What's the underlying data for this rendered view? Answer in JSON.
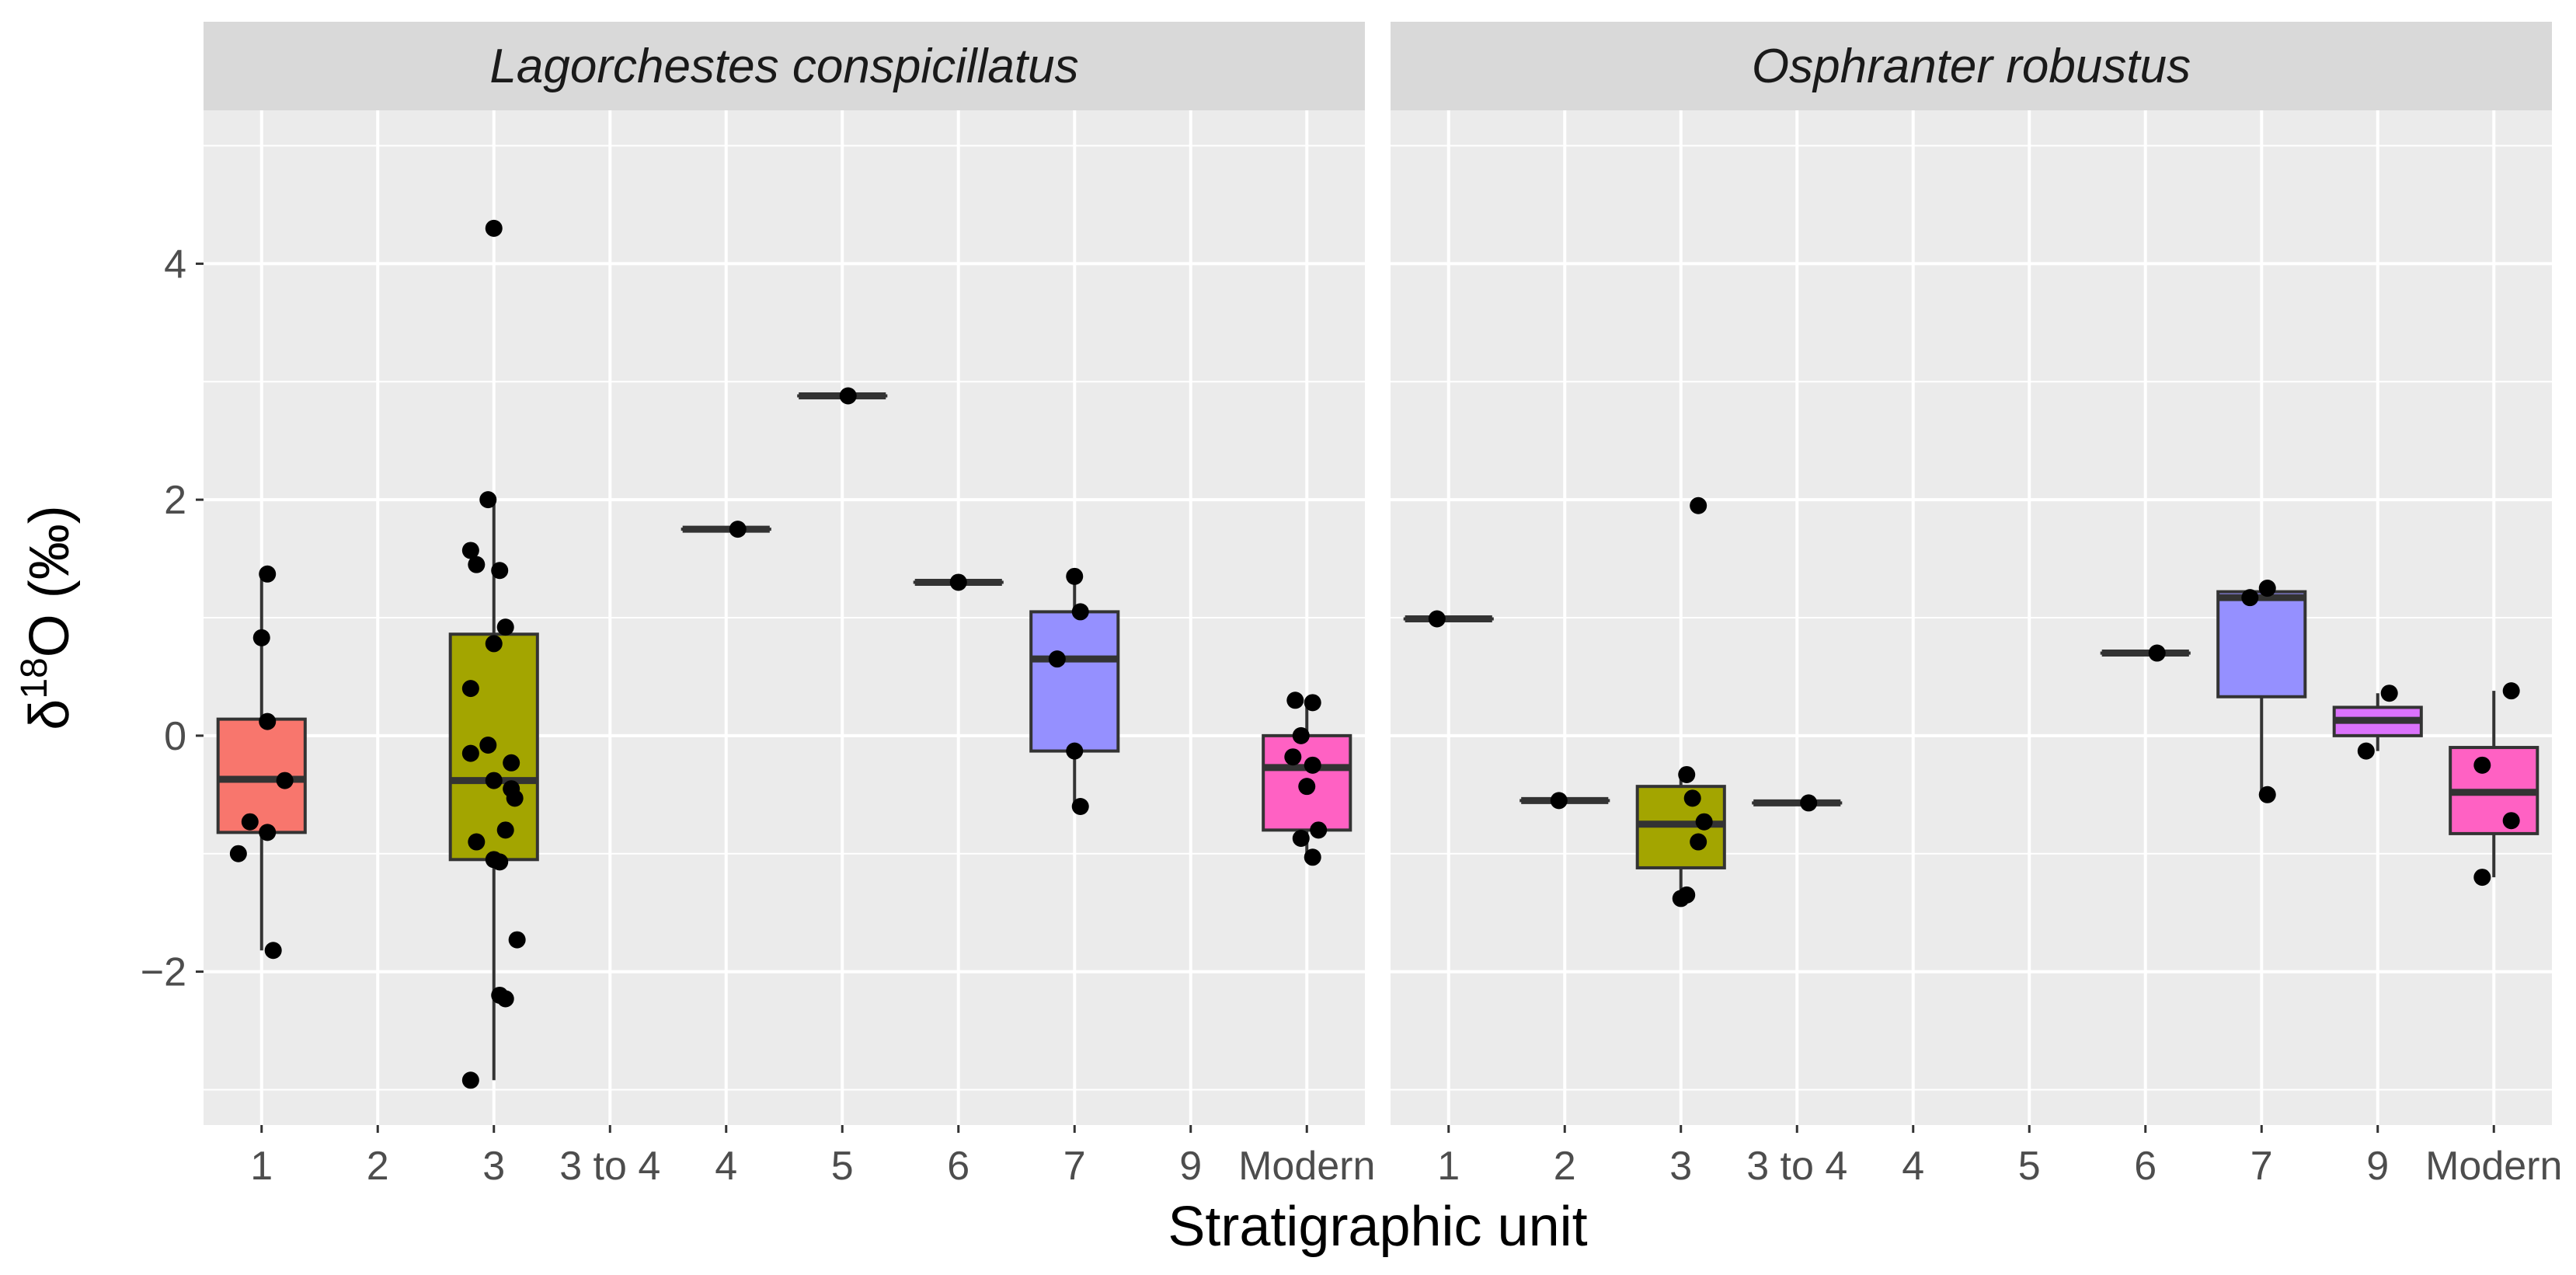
{
  "chart_data": {
    "type": "boxplot",
    "xlabel": "Stratigraphic unit",
    "ylabel": {
      "prefix": "δ",
      "superscript": "18",
      "suffix": "O (‰)"
    },
    "ylim": [
      -3.3,
      5.3
    ],
    "yticks": [
      -2,
      0,
      2,
      4
    ],
    "ytick_labels": [
      "−2",
      "0",
      "2",
      "4"
    ],
    "categories": [
      "1",
      "2",
      "3",
      "3 to 4",
      "4",
      "5",
      "6",
      "7",
      "9",
      "Modern"
    ],
    "colors": {
      "1": "#F8766D",
      "2": "#D39200",
      "3": "#A3A500",
      "3 to 4": "#93AA00",
      "4": "#5EB300",
      "5": "#00BA38",
      "6": "#00C19F",
      "7": "#9590FF",
      "9": "#DB72FB",
      "Modern": "#FF61C3"
    },
    "panels": [
      {
        "title": "Lagorchestes conspicillatus",
        "groups": [
          {
            "category": "1",
            "q1": -0.82,
            "median": -0.37,
            "q3": 0.14,
            "whisker_low": -1.82,
            "whisker_high": 1.37,
            "points": [
              [
                0.05,
                1.37
              ],
              [
                0.0,
                0.83
              ],
              [
                0.05,
                0.12
              ],
              [
                0.2,
                -0.38
              ],
              [
                -0.1,
                -0.73
              ],
              [
                0.05,
                -0.82
              ],
              [
                -0.2,
                -1.0
              ],
              [
                0.1,
                -1.82
              ]
            ]
          },
          {
            "category": "3",
            "q1": -1.05,
            "median": -0.38,
            "q3": 0.86,
            "whisker_low": -2.92,
            "whisker_high": 2.0,
            "points": [
              [
                0.0,
                4.3
              ],
              [
                -0.05,
                2.0
              ],
              [
                -0.2,
                1.57
              ],
              [
                -0.15,
                1.45
              ],
              [
                0.05,
                1.4
              ],
              [
                0.1,
                0.92
              ],
              [
                0.0,
                0.78
              ],
              [
                -0.2,
                0.4
              ],
              [
                -0.05,
                -0.08
              ],
              [
                -0.2,
                -0.15
              ],
              [
                0.15,
                -0.23
              ],
              [
                0.0,
                -0.38
              ],
              [
                0.15,
                -0.45
              ],
              [
                0.18,
                -0.53
              ],
              [
                -0.15,
                -0.9
              ],
              [
                0.1,
                -0.8
              ],
              [
                0.0,
                -1.05
              ],
              [
                0.05,
                -1.07
              ],
              [
                0.2,
                -1.73
              ],
              [
                0.05,
                -2.2
              ],
              [
                0.1,
                -2.23
              ],
              [
                -0.2,
                -2.92
              ]
            ]
          },
          {
            "category": "4",
            "q1": 1.75,
            "median": 1.75,
            "q3": 1.75,
            "whisker_low": 1.75,
            "whisker_high": 1.75,
            "points": [
              [
                0.1,
                1.75
              ]
            ]
          },
          {
            "category": "5",
            "q1": 2.88,
            "median": 2.88,
            "q3": 2.88,
            "whisker_low": 2.88,
            "whisker_high": 2.88,
            "points": [
              [
                0.05,
                2.88
              ]
            ]
          },
          {
            "category": "6",
            "q1": 1.3,
            "median": 1.3,
            "q3": 1.3,
            "whisker_low": 1.3,
            "whisker_high": 1.3,
            "points": [
              [
                0.0,
                1.3
              ]
            ]
          },
          {
            "category": "7",
            "q1": -0.13,
            "median": 0.65,
            "q3": 1.05,
            "whisker_low": -0.6,
            "whisker_high": 1.35,
            "points": [
              [
                0.0,
                1.35
              ],
              [
                0.05,
                1.05
              ],
              [
                -0.15,
                0.65
              ],
              [
                0.0,
                -0.13
              ],
              [
                0.05,
                -0.6
              ]
            ]
          },
          {
            "category": "Modern",
            "q1": -0.8,
            "median": -0.27,
            "q3": 0.0,
            "whisker_low": -1.05,
            "whisker_high": 0.28,
            "points": [
              [
                -0.1,
                0.3
              ],
              [
                0.05,
                0.28
              ],
              [
                -0.05,
                0.0
              ],
              [
                -0.12,
                -0.18
              ],
              [
                0.05,
                -0.25
              ],
              [
                0.0,
                -0.43
              ],
              [
                -0.05,
                -0.87
              ],
              [
                0.1,
                -0.8
              ],
              [
                0.05,
                -1.03
              ]
            ]
          }
        ]
      },
      {
        "title": "Osphranter robustus",
        "groups": [
          {
            "category": "1",
            "q1": 0.99,
            "median": 0.99,
            "q3": 0.99,
            "whisker_low": 0.99,
            "whisker_high": 0.99,
            "points": [
              [
                -0.1,
                0.99
              ]
            ]
          },
          {
            "category": "2",
            "q1": -0.55,
            "median": -0.55,
            "q3": -0.55,
            "whisker_low": -0.55,
            "whisker_high": -0.55,
            "points": [
              [
                -0.05,
                -0.55
              ]
            ]
          },
          {
            "category": "3",
            "q1": -1.12,
            "median": -0.75,
            "q3": -0.43,
            "whisker_low": -1.37,
            "whisker_high": -0.32,
            "points": [
              [
                0.15,
                1.95
              ],
              [
                0.05,
                -0.33
              ],
              [
                0.1,
                -0.53
              ],
              [
                0.2,
                -0.73
              ],
              [
                0.15,
                -0.9
              ],
              [
                0.05,
                -1.35
              ],
              [
                0.0,
                -1.38
              ]
            ]
          },
          {
            "category": "3 to 4",
            "q1": -0.57,
            "median": -0.57,
            "q3": -0.57,
            "whisker_low": -0.57,
            "whisker_high": -0.57,
            "points": [
              [
                0.1,
                -0.57
              ]
            ]
          },
          {
            "category": "6",
            "q1": 0.7,
            "median": 0.7,
            "q3": 0.7,
            "whisker_low": 0.7,
            "whisker_high": 0.7,
            "points": [
              [
                0.1,
                0.7
              ]
            ]
          },
          {
            "category": "7",
            "q1": 0.33,
            "median": 1.17,
            "q3": 1.22,
            "whisker_low": -0.5,
            "whisker_high": 1.25,
            "points": [
              [
                0.05,
                1.25
              ],
              [
                -0.1,
                1.17
              ],
              [
                0.05,
                -0.5
              ]
            ]
          },
          {
            "category": "9",
            "q1": 0.0,
            "median": 0.13,
            "q3": 0.24,
            "whisker_low": -0.13,
            "whisker_high": 0.36,
            "points": [
              [
                0.1,
                0.36
              ],
              [
                -0.1,
                -0.13
              ]
            ]
          },
          {
            "category": "Modern",
            "q1": -0.83,
            "median": -0.48,
            "q3": -0.1,
            "whisker_low": -1.2,
            "whisker_high": 0.38,
            "points": [
              [
                0.15,
                0.38
              ],
              [
                -0.1,
                -0.25
              ],
              [
                0.15,
                -0.72
              ],
              [
                -0.1,
                -1.2
              ]
            ]
          }
        ]
      }
    ]
  }
}
